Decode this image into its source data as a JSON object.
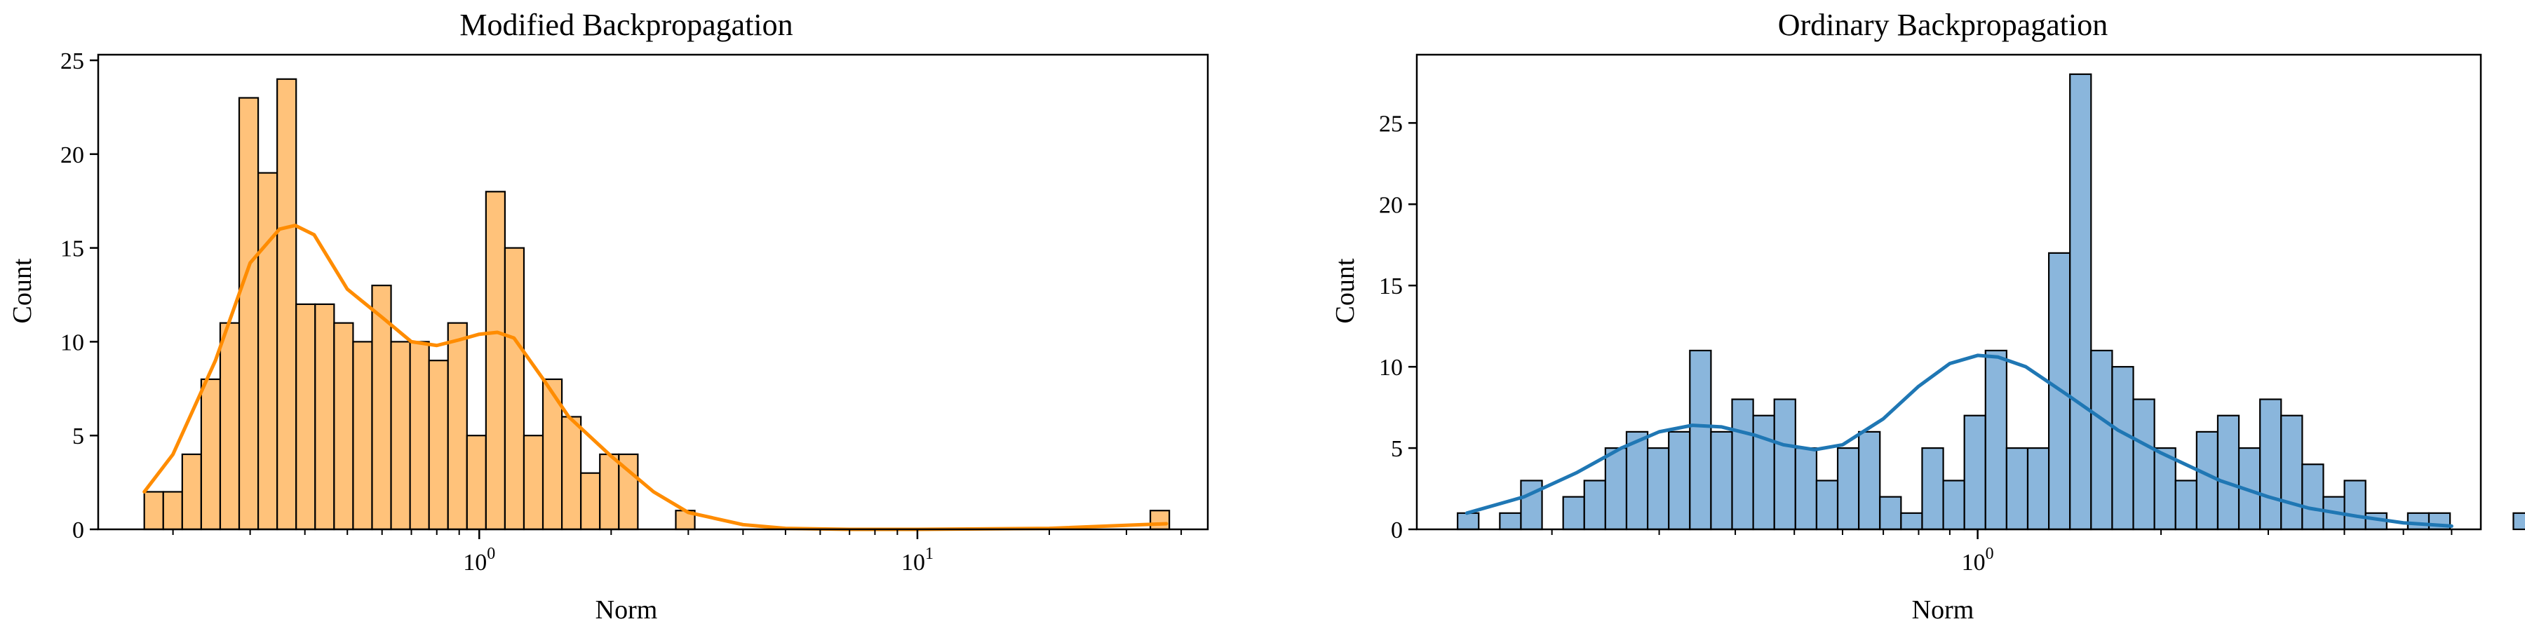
{
  "chart_data": [
    {
      "type": "bar",
      "subtype": "histogram-with-kde",
      "title": "Modified Backpropagation",
      "xlabel": "Norm",
      "ylabel": "Count",
      "x_scale": "log",
      "xlim": [
        0.135,
        46
      ],
      "ylim": [
        0,
        25.3
      ],
      "yticks": [
        0,
        5,
        10,
        15,
        20,
        25
      ],
      "xticks": [
        {
          "value": 1,
          "base": "10",
          "exp": "0"
        },
        {
          "value": 10,
          "base": "10",
          "exp": "1"
        }
      ],
      "grid": false,
      "colors": {
        "bar_fill": "#ffc27a",
        "bar_edge": "#000000",
        "kde": "#ff8c00"
      },
      "bins": {
        "start": 0.172,
        "ratio": 1.1049
      },
      "counts": [
        2,
        2,
        4,
        8,
        11,
        23,
        19,
        24,
        12,
        12,
        11,
        10,
        13,
        10,
        10,
        9,
        11,
        5,
        18,
        15,
        5,
        8,
        6,
        3,
        4,
        4,
        0,
        0,
        1,
        0,
        0,
        0,
        0,
        0,
        0,
        0,
        0,
        0,
        0,
        0,
        0,
        0,
        0,
        0,
        0,
        0,
        0,
        0,
        0,
        0,
        0,
        0,
        0,
        1
      ],
      "kde": {
        "x": [
          0.172,
          0.2,
          0.25,
          0.3,
          0.35,
          0.38,
          0.42,
          0.5,
          0.6,
          0.7,
          0.8,
          0.9,
          1.0,
          1.1,
          1.2,
          1.4,
          1.6,
          2.0,
          2.5,
          3.0,
          4.0,
          5.0,
          7.0,
          10.0,
          20.0,
          37.0
        ],
        "y": [
          2.0,
          4.0,
          9.0,
          14.2,
          16.0,
          16.2,
          15.7,
          12.8,
          11.3,
          10.0,
          9.8,
          10.1,
          10.4,
          10.5,
          10.2,
          8.0,
          6.0,
          3.9,
          2.0,
          0.9,
          0.25,
          0.05,
          0.0,
          0.0,
          0.05,
          0.3
        ]
      }
    },
    {
      "type": "bar",
      "subtype": "histogram-with-kde",
      "title": "Ordinary Backpropagation",
      "xlabel": "Norm",
      "ylabel": "Count",
      "x_scale": "log",
      "xlim": [
        0.12,
        6.7
      ],
      "ylim": [
        0,
        29.2
      ],
      "yticks": [
        0,
        5,
        10,
        15,
        20,
        25
      ],
      "xticks": [
        {
          "value": 1,
          "base": "10",
          "exp": "0"
        }
      ],
      "grid": false,
      "colors": {
        "bar_fill": "#8ab6dc",
        "bar_edge": "#000000",
        "kde": "#1f77b4"
      },
      "bins": {
        "start": 0.14,
        "ratio": 1.0831
      },
      "counts": [
        1,
        0,
        1,
        3,
        0,
        2,
        3,
        5,
        6,
        5,
        6,
        11,
        6,
        8,
        7,
        8,
        5,
        3,
        5,
        6,
        2,
        1,
        5,
        3,
        7,
        11,
        5,
        5,
        17,
        28,
        11,
        10,
        8,
        5,
        3,
        6,
        7,
        5,
        8,
        7,
        4,
        2,
        3,
        1,
        0,
        1,
        1,
        0,
        0,
        0,
        1
      ],
      "kde": {
        "x": [
          0.145,
          0.18,
          0.22,
          0.26,
          0.3,
          0.34,
          0.38,
          0.43,
          0.48,
          0.54,
          0.6,
          0.7,
          0.8,
          0.9,
          1.0,
          1.08,
          1.2,
          1.4,
          1.7,
          2.0,
          2.5,
          3.0,
          3.5,
          4.2,
          5.0,
          6.0
        ],
        "y": [
          1.0,
          2.0,
          3.5,
          5.0,
          6.0,
          6.4,
          6.3,
          5.8,
          5.2,
          4.9,
          5.2,
          6.8,
          8.8,
          10.2,
          10.7,
          10.6,
          10.0,
          8.3,
          6.1,
          4.7,
          3.0,
          2.0,
          1.3,
          0.8,
          0.4,
          0.2
        ]
      }
    }
  ]
}
